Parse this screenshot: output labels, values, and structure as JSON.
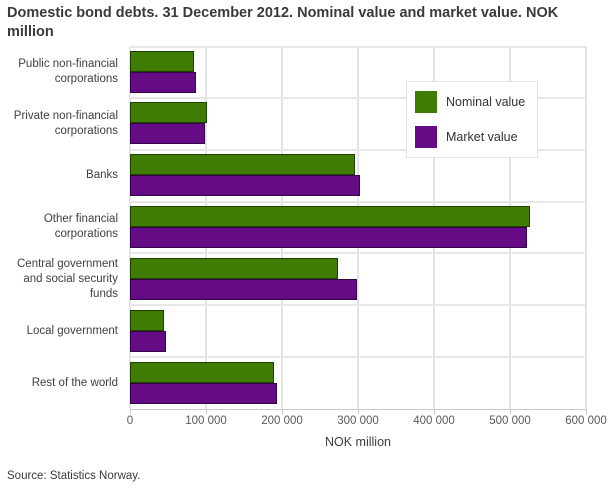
{
  "chart_data": {
    "type": "bar",
    "orientation": "horizontal",
    "title": "Domestic bond debts. 31 December 2012. Nominal value and market value. NOK million",
    "categories": [
      "Public non-financial corporations",
      "Private non-financial corporations",
      "Banks",
      "Other financial corporations",
      "Central government and social security funds",
      "Local government",
      "Rest of the world"
    ],
    "series": [
      {
        "name": "Nominal value",
        "color": "#3e7c04",
        "values": [
          84000,
          101000,
          296000,
          526000,
          274000,
          45000,
          190000
        ]
      },
      {
        "name": "Market value",
        "color": "#650b86",
        "values": [
          87000,
          99000,
          302000,
          523000,
          299000,
          47000,
          193000
        ]
      }
    ],
    "xlabel": "NOK million",
    "xlim": [
      0,
      600000
    ],
    "xticks": [
      0,
      100000,
      200000,
      300000,
      400000,
      500000,
      600000
    ],
    "xtick_labels": [
      "0",
      "100 000",
      "200 000",
      "300 000",
      "400 000",
      "500 000",
      "600 000"
    ],
    "grid": true,
    "legend_position": "inside-top-right",
    "bar_border_color": "rgba(0,0,0,0.5)",
    "grid_color": "#e4e4e4"
  },
  "source": "Source: Statistics Norway."
}
